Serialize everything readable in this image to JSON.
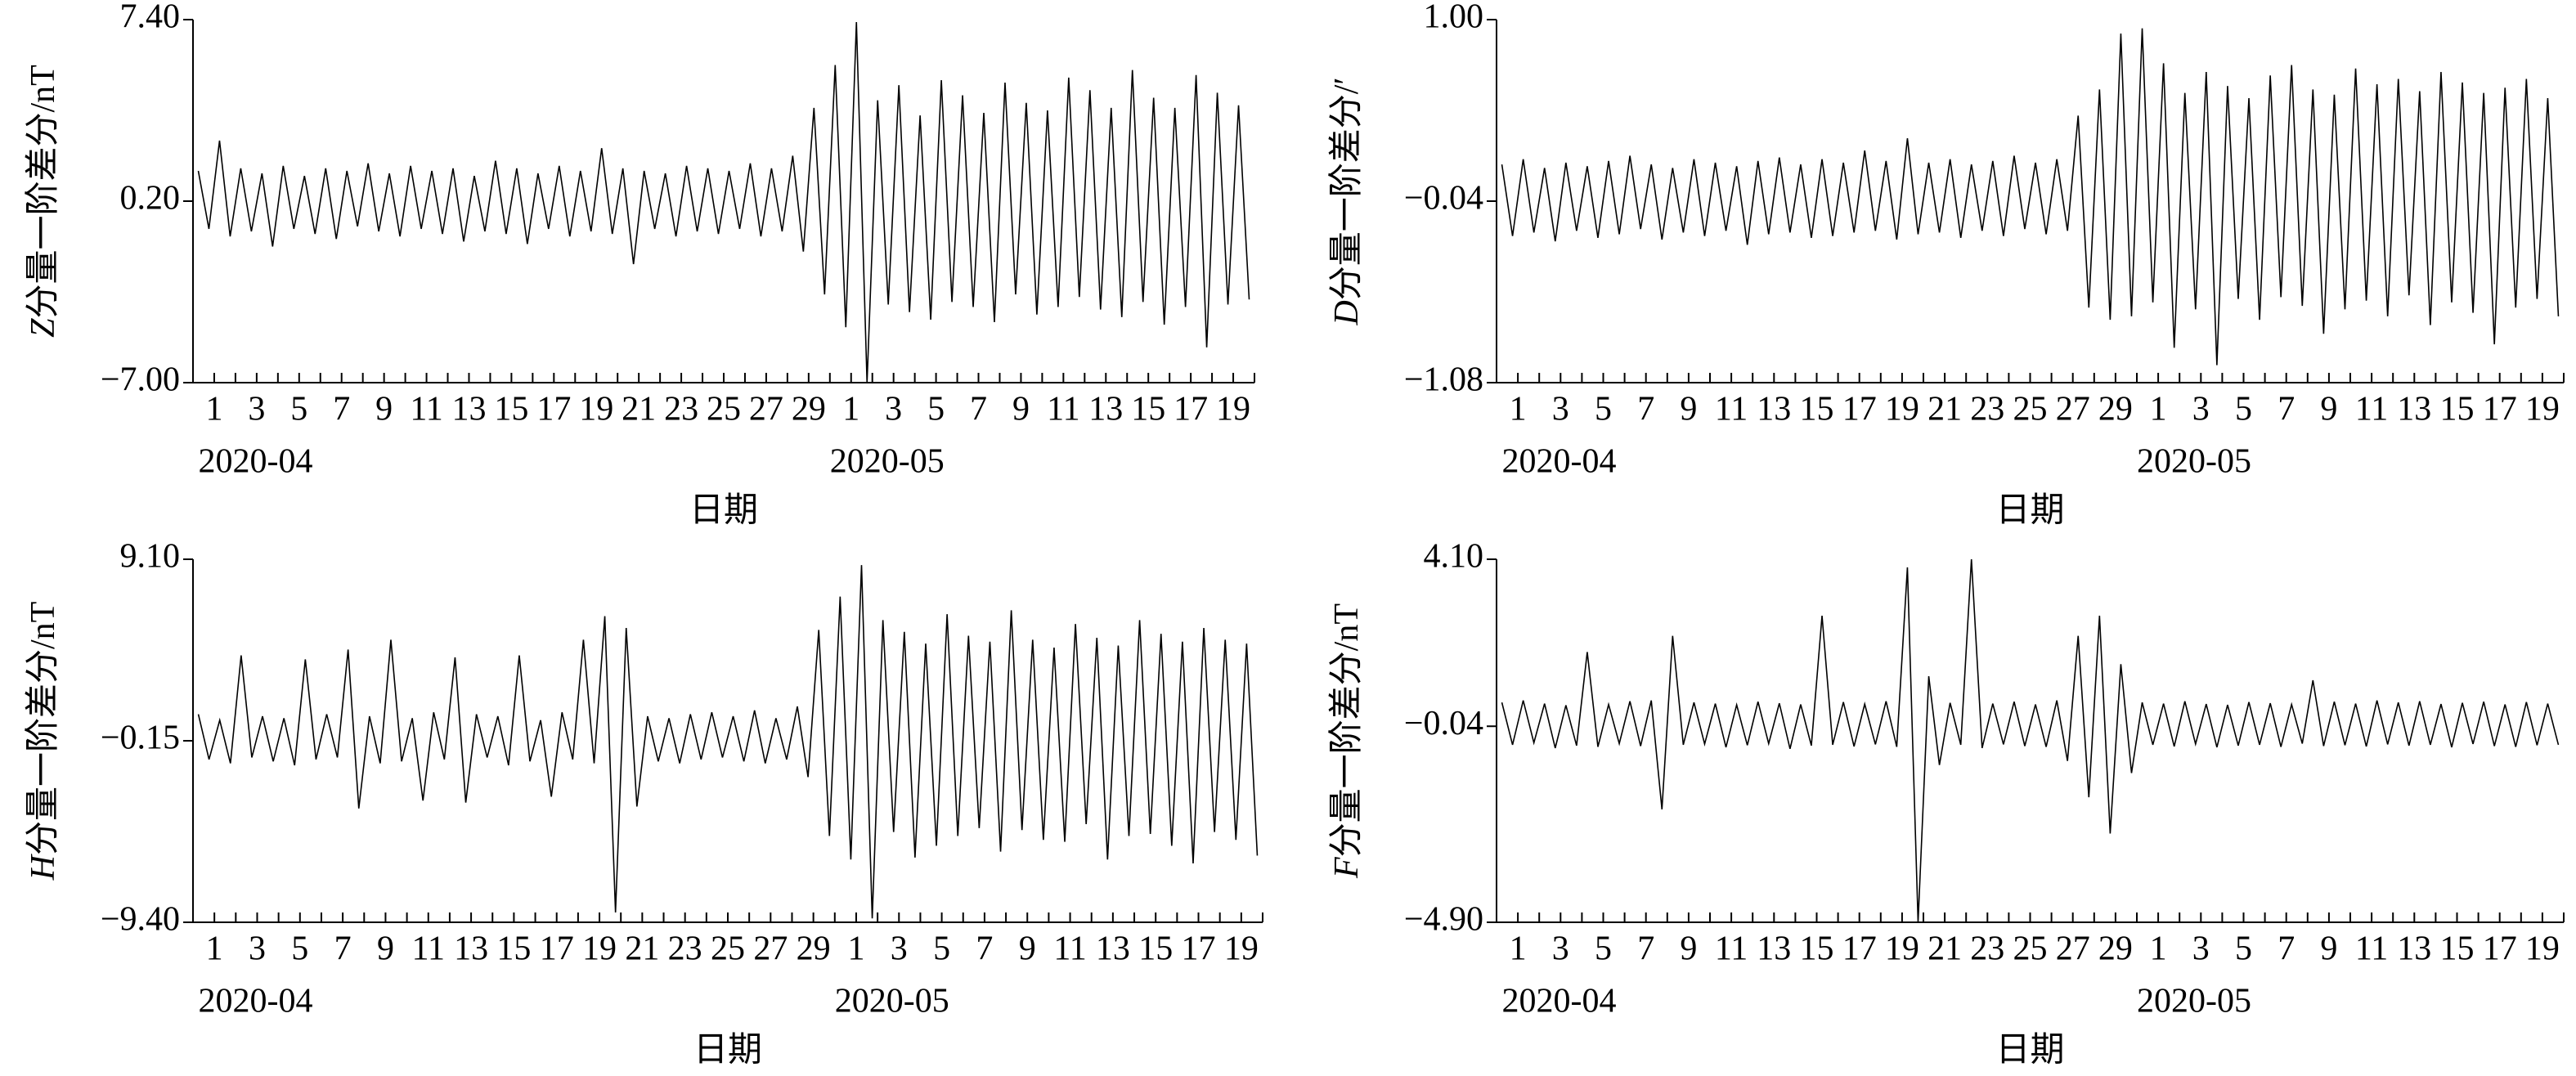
{
  "chart_data": [
    {
      "type": "line",
      "ylabel_var": "Z",
      "ylabel": "分量一阶差分/nT",
      "xlabel": "日期",
      "month_labels": [
        "2020-04",
        "2020-05"
      ],
      "color": "#000000",
      "xlim": [
        0,
        50
      ],
      "ylim": [
        -7.0,
        7.4
      ],
      "yticks": [
        {
          "value": 7.4,
          "label": "7.40"
        },
        {
          "value": 0.2,
          "label": "0.20"
        },
        {
          "value": -7.0,
          "label": "−7.00"
        }
      ],
      "xticks": [
        1,
        3,
        5,
        7,
        9,
        11,
        13,
        15,
        17,
        19,
        21,
        23,
        25,
        27,
        29,
        {
          "value": 31,
          "label": "1"
        },
        {
          "value": 33,
          "label": "3"
        },
        {
          "value": 35,
          "label": "5"
        },
        {
          "value": 37,
          "label": "7"
        },
        {
          "value": 39,
          "label": "9"
        },
        {
          "value": 41,
          "label": "11"
        },
        {
          "value": 43,
          "label": "13"
        },
        {
          "value": 45,
          "label": "15"
        },
        {
          "value": 47,
          "label": "17"
        },
        {
          "value": 49,
          "label": "19"
        }
      ],
      "xminorticks": [
        0,
        2,
        4,
        6,
        8,
        10,
        12,
        14,
        16,
        18,
        20,
        22,
        24,
        26,
        28,
        30,
        32,
        34,
        36,
        38,
        40,
        42,
        44,
        46,
        48,
        50
      ],
      "x": [
        0.25,
        0.75,
        1.25,
        1.75,
        2.25,
        2.75,
        3.25,
        3.75,
        4.25,
        4.75,
        5.25,
        5.75,
        6.25,
        6.75,
        7.25,
        7.75,
        8.25,
        8.75,
        9.25,
        9.75,
        10.25,
        10.75,
        11.25,
        11.75,
        12.25,
        12.75,
        13.25,
        13.75,
        14.25,
        14.75,
        15.25,
        15.75,
        16.25,
        16.75,
        17.25,
        17.75,
        18.25,
        18.75,
        19.25,
        19.75,
        20.25,
        20.75,
        21.25,
        21.75,
        22.25,
        22.75,
        23.25,
        23.75,
        24.25,
        24.75,
        25.25,
        25.75,
        26.25,
        26.75,
        27.25,
        27.75,
        28.25,
        28.75,
        29.25,
        29.75,
        30.25,
        30.75,
        31.25,
        31.75,
        32.25,
        32.75,
        33.25,
        33.75,
        34.25,
        34.75,
        35.25,
        35.75,
        36.25,
        36.75,
        37.25,
        37.75,
        38.25,
        38.75,
        39.25,
        39.75,
        40.25,
        40.75,
        41.25,
        41.75,
        42.25,
        42.75,
        43.25,
        43.75,
        44.25,
        44.75,
        45.25,
        45.75,
        46.25,
        46.75,
        47.25,
        47.75,
        48.25,
        48.75,
        49.25,
        49.75
      ],
      "values": [
        1.4,
        -0.9,
        2.6,
        -1.2,
        1.5,
        -1.0,
        1.3,
        -1.6,
        1.6,
        -0.9,
        1.2,
        -1.1,
        1.5,
        -1.3,
        1.4,
        -0.8,
        1.7,
        -1.0,
        1.3,
        -1.2,
        1.6,
        -0.9,
        1.4,
        -1.1,
        1.5,
        -1.4,
        1.2,
        -1.0,
        1.8,
        -1.1,
        1.5,
        -1.5,
        1.3,
        -0.9,
        1.6,
        -1.2,
        1.4,
        -1.0,
        2.3,
        -1.1,
        1.5,
        -2.3,
        1.4,
        -0.9,
        1.3,
        -1.2,
        1.6,
        -1.0,
        1.5,
        -1.1,
        1.4,
        -0.9,
        1.7,
        -1.2,
        1.5,
        -1.0,
        2.0,
        -1.8,
        3.9,
        -3.5,
        5.6,
        -4.8,
        7.3,
        -7.0,
        4.2,
        -3.9,
        4.8,
        -4.2,
        3.6,
        -4.5,
        5.0,
        -3.8,
        4.4,
        -4.0,
        3.7,
        -4.6,
        4.9,
        -3.5,
        4.1,
        -4.3,
        3.8,
        -4.0,
        5.1,
        -3.6,
        4.6,
        -4.1,
        3.9,
        -4.4,
        5.4,
        -3.8,
        4.3,
        -4.7,
        3.9,
        -4.0,
        5.2,
        -5.6,
        4.5,
        -3.9,
        4.0,
        -3.7
      ]
    },
    {
      "type": "line",
      "ylabel_var": "D",
      "ylabel": "分量一阶差分/′",
      "xlabel": "日期",
      "month_labels": [
        "2020-04",
        "2020-05"
      ],
      "color": "#000000",
      "xlim": [
        0,
        50
      ],
      "ylim": [
        -1.08,
        1.0
      ],
      "yticks": [
        {
          "value": 1.0,
          "label": "1.00"
        },
        {
          "value": -0.04,
          "label": "−0.04"
        },
        {
          "value": -1.08,
          "label": "−1.08"
        }
      ],
      "xticks": [
        1,
        3,
        5,
        7,
        9,
        11,
        13,
        15,
        17,
        19,
        21,
        23,
        25,
        27,
        29,
        {
          "value": 31,
          "label": "1"
        },
        {
          "value": 33,
          "label": "3"
        },
        {
          "value": 35,
          "label": "5"
        },
        {
          "value": 37,
          "label": "7"
        },
        {
          "value": 39,
          "label": "9"
        },
        {
          "value": 41,
          "label": "11"
        },
        {
          "value": 43,
          "label": "13"
        },
        {
          "value": 45,
          "label": "15"
        },
        {
          "value": 47,
          "label": "17"
        },
        {
          "value": 49,
          "label": "19"
        }
      ],
      "xminorticks": [
        0,
        2,
        4,
        6,
        8,
        10,
        12,
        14,
        16,
        18,
        20,
        22,
        24,
        26,
        28,
        30,
        32,
        34,
        36,
        38,
        40,
        42,
        44,
        46,
        48,
        50
      ],
      "x": [
        0.25,
        0.75,
        1.25,
        1.75,
        2.25,
        2.75,
        3.25,
        3.75,
        4.25,
        4.75,
        5.25,
        5.75,
        6.25,
        6.75,
        7.25,
        7.75,
        8.25,
        8.75,
        9.25,
        9.75,
        10.25,
        10.75,
        11.25,
        11.75,
        12.25,
        12.75,
        13.25,
        13.75,
        14.25,
        14.75,
        15.25,
        15.75,
        16.25,
        16.75,
        17.25,
        17.75,
        18.25,
        18.75,
        19.25,
        19.75,
        20.25,
        20.75,
        21.25,
        21.75,
        22.25,
        22.75,
        23.25,
        23.75,
        24.25,
        24.75,
        25.25,
        25.75,
        26.25,
        26.75,
        27.25,
        27.75,
        28.25,
        28.75,
        29.25,
        29.75,
        30.25,
        30.75,
        31.25,
        31.75,
        32.25,
        32.75,
        33.25,
        33.75,
        34.25,
        34.75,
        35.25,
        35.75,
        36.25,
        36.75,
        37.25,
        37.75,
        38.25,
        38.75,
        39.25,
        39.75,
        40.25,
        40.75,
        41.25,
        41.75,
        42.25,
        42.75,
        43.25,
        43.75,
        44.25,
        44.75,
        45.25,
        45.75,
        46.25,
        46.75,
        47.25,
        47.75,
        48.25,
        48.75,
        49.25,
        49.75
      ],
      "values": [
        0.17,
        -0.24,
        0.2,
        -0.22,
        0.15,
        -0.27,
        0.18,
        -0.21,
        0.16,
        -0.25,
        0.19,
        -0.23,
        0.22,
        -0.2,
        0.17,
        -0.26,
        0.15,
        -0.22,
        0.2,
        -0.24,
        0.18,
        -0.21,
        0.16,
        -0.29,
        0.19,
        -0.23,
        0.21,
        -0.22,
        0.17,
        -0.25,
        0.2,
        -0.24,
        0.18,
        -0.22,
        0.25,
        -0.21,
        0.19,
        -0.26,
        0.32,
        -0.23,
        0.18,
        -0.22,
        0.2,
        -0.25,
        0.17,
        -0.21,
        0.19,
        -0.24,
        0.22,
        -0.2,
        0.18,
        -0.23,
        0.2,
        -0.21,
        0.45,
        -0.65,
        0.6,
        -0.72,
        0.92,
        -0.7,
        0.95,
        -0.62,
        0.75,
        -0.88,
        0.58,
        -0.66,
        0.7,
        -0.98,
        0.62,
        -0.6,
        0.55,
        -0.72,
        0.68,
        -0.59,
        0.74,
        -0.64,
        0.6,
        -0.8,
        0.57,
        -0.66,
        0.72,
        -0.61,
        0.63,
        -0.7,
        0.66,
        -0.58,
        0.59,
        -0.75,
        0.7,
        -0.62,
        0.64,
        -0.68,
        0.58,
        -0.86,
        0.61,
        -0.65,
        0.66,
        -0.6,
        0.55,
        -0.7
      ]
    },
    {
      "type": "line",
      "ylabel_var": "H",
      "ylabel": "分量一阶差分/nT",
      "xlabel": "日期",
      "month_labels": [
        "2020-04",
        "2020-05"
      ],
      "color": "#000000",
      "xlim": [
        0,
        50
      ],
      "ylim": [
        -9.4,
        9.1
      ],
      "yticks": [
        {
          "value": 9.1,
          "label": "9.10"
        },
        {
          "value": -0.15,
          "label": "−0.15"
        },
        {
          "value": -9.4,
          "label": "−9.40"
        }
      ],
      "xticks": [
        1,
        3,
        5,
        7,
        9,
        11,
        13,
        15,
        17,
        19,
        21,
        23,
        25,
        27,
        29,
        {
          "value": 31,
          "label": "1"
        },
        {
          "value": 33,
          "label": "3"
        },
        {
          "value": 35,
          "label": "5"
        },
        {
          "value": 37,
          "label": "7"
        },
        {
          "value": 39,
          "label": "9"
        },
        {
          "value": 41,
          "label": "11"
        },
        {
          "value": 43,
          "label": "13"
        },
        {
          "value": 45,
          "label": "15"
        },
        {
          "value": 47,
          "label": "17"
        },
        {
          "value": 49,
          "label": "19"
        }
      ],
      "xminorticks": [
        0,
        2,
        4,
        6,
        8,
        10,
        12,
        14,
        16,
        18,
        20,
        22,
        24,
        26,
        28,
        30,
        32,
        34,
        36,
        38,
        40,
        42,
        44,
        46,
        48,
        50
      ],
      "x": [
        0.25,
        0.75,
        1.25,
        1.75,
        2.25,
        2.75,
        3.25,
        3.75,
        4.25,
        4.75,
        5.25,
        5.75,
        6.25,
        6.75,
        7.25,
        7.75,
        8.25,
        8.75,
        9.25,
        9.75,
        10.25,
        10.75,
        11.25,
        11.75,
        12.25,
        12.75,
        13.25,
        13.75,
        14.25,
        14.75,
        15.25,
        15.75,
        16.25,
        16.75,
        17.25,
        17.75,
        18.25,
        18.75,
        19.25,
        19.75,
        20.25,
        20.75,
        21.25,
        21.75,
        22.25,
        22.75,
        23.25,
        23.75,
        24.25,
        24.75,
        25.25,
        25.75,
        26.25,
        26.75,
        27.25,
        27.75,
        28.25,
        28.75,
        29.25,
        29.75,
        30.25,
        30.75,
        31.25,
        31.75,
        32.25,
        32.75,
        33.25,
        33.75,
        34.25,
        34.75,
        35.25,
        35.75,
        36.25,
        36.75,
        37.25,
        37.75,
        38.25,
        38.75,
        39.25,
        39.75,
        40.25,
        40.75,
        41.25,
        41.75,
        42.25,
        42.75,
        43.25,
        43.75,
        44.25,
        44.75,
        45.25,
        45.75,
        46.25,
        46.75,
        47.25,
        47.75,
        48.25,
        48.75,
        49.25,
        49.75
      ],
      "values": [
        1.2,
        -1.1,
        0.9,
        -1.3,
        4.2,
        -1.0,
        1.1,
        -1.2,
        1.0,
        -1.4,
        4.0,
        -1.1,
        1.2,
        -1.0,
        4.5,
        -3.6,
        1.1,
        -1.3,
        5.0,
        -1.2,
        1.0,
        -3.2,
        1.3,
        -1.1,
        4.1,
        -3.3,
        1.2,
        -1.0,
        1.1,
        -1.4,
        4.2,
        -1.2,
        0.9,
        -3.0,
        1.3,
        -1.1,
        5.0,
        -1.3,
        6.2,
        -8.9,
        5.6,
        -3.5,
        1.1,
        -1.2,
        1.0,
        -1.3,
        1.2,
        -1.1,
        1.3,
        -1.0,
        1.1,
        -1.2,
        1.4,
        -1.3,
        1.0,
        -1.1,
        1.6,
        -2.0,
        5.5,
        -5.0,
        7.2,
        -6.2,
        8.8,
        -9.2,
        6.0,
        -4.8,
        5.4,
        -6.1,
        4.8,
        -5.5,
        6.3,
        -5.0,
        5.2,
        -4.6,
        4.9,
        -5.8,
        6.5,
        -4.7,
        5.0,
        -5.2,
        4.6,
        -5.3,
        5.8,
        -4.4,
        5.1,
        -6.2,
        4.7,
        -5.0,
        6.0,
        -4.9,
        5.3,
        -5.5,
        4.9,
        -6.4,
        5.6,
        -4.8,
        5.0,
        -5.2,
        4.8,
        -6.0
      ]
    },
    {
      "type": "line",
      "ylabel_var": "F",
      "ylabel": "分量一阶差分/nT",
      "xlabel": "日期",
      "month_labels": [
        "2020-04",
        "2020-05"
      ],
      "color": "#000000",
      "xlim": [
        0,
        50
      ],
      "ylim": [
        -4.9,
        4.1
      ],
      "yticks": [
        {
          "value": 4.1,
          "label": "4.10"
        },
        {
          "value": -0.04,
          "label": "−0.04"
        },
        {
          "value": -4.9,
          "label": "−4.90"
        }
      ],
      "xticks": [
        1,
        3,
        5,
        7,
        9,
        11,
        13,
        15,
        17,
        19,
        21,
        23,
        25,
        27,
        29,
        {
          "value": 31,
          "label": "1"
        },
        {
          "value": 33,
          "label": "3"
        },
        {
          "value": 35,
          "label": "5"
        },
        {
          "value": 37,
          "label": "7"
        },
        {
          "value": 39,
          "label": "9"
        },
        {
          "value": 41,
          "label": "11"
        },
        {
          "value": 43,
          "label": "13"
        },
        {
          "value": 45,
          "label": "15"
        },
        {
          "value": 47,
          "label": "17"
        },
        {
          "value": 49,
          "label": "19"
        }
      ],
      "xminorticks": [
        0,
        2,
        4,
        6,
        8,
        10,
        12,
        14,
        16,
        18,
        20,
        22,
        24,
        26,
        28,
        30,
        32,
        34,
        36,
        38,
        40,
        42,
        44,
        46,
        48,
        50
      ],
      "x": [
        0.25,
        0.75,
        1.25,
        1.75,
        2.25,
        2.75,
        3.25,
        3.75,
        4.25,
        4.75,
        5.25,
        5.75,
        6.25,
        6.75,
        7.25,
        7.75,
        8.25,
        8.75,
        9.25,
        9.75,
        10.25,
        10.75,
        11.25,
        11.75,
        12.25,
        12.75,
        13.25,
        13.75,
        14.25,
        14.75,
        15.25,
        15.75,
        16.25,
        16.75,
        17.25,
        17.75,
        18.25,
        18.75,
        19.25,
        19.75,
        20.25,
        20.75,
        21.25,
        21.75,
        22.25,
        22.75,
        23.25,
        23.75,
        24.25,
        24.75,
        25.25,
        25.75,
        26.25,
        26.75,
        27.25,
        27.75,
        28.25,
        28.75,
        29.25,
        29.75,
        30.25,
        30.75,
        31.25,
        31.75,
        32.25,
        32.75,
        33.25,
        33.75,
        34.25,
        34.75,
        35.25,
        35.75,
        36.25,
        36.75,
        37.25,
        37.75,
        38.25,
        38.75,
        39.25,
        39.75,
        40.25,
        40.75,
        41.25,
        41.75,
        42.25,
        42.75,
        43.25,
        43.75,
        44.25,
        44.75,
        45.25,
        45.75,
        46.25,
        46.75,
        47.25,
        47.75,
        48.25,
        48.75,
        49.25,
        49.75
      ],
      "values": [
        0.55,
        -0.5,
        0.6,
        -0.45,
        0.52,
        -0.58,
        0.48,
        -0.52,
        1.8,
        -0.55,
        0.5,
        -0.47,
        0.58,
        -0.53,
        0.6,
        -2.1,
        2.2,
        -0.5,
        0.55,
        -0.48,
        0.52,
        -0.56,
        0.49,
        -0.51,
        0.57,
        -0.47,
        0.53,
        -0.6,
        0.5,
        -0.52,
        2.7,
        -0.5,
        0.56,
        -0.54,
        0.51,
        -0.49,
        0.58,
        -0.55,
        3.9,
        -4.9,
        1.2,
        -1.0,
        0.54,
        -0.5,
        4.1,
        -0.58,
        0.52,
        -0.49,
        0.57,
        -0.53,
        0.5,
        -0.55,
        0.6,
        -0.9,
        2.2,
        -1.8,
        2.7,
        -2.7,
        1.5,
        -1.2,
        0.55,
        -0.5,
        0.52,
        -0.54,
        0.58,
        -0.48,
        0.51,
        -0.56,
        0.49,
        -0.52,
        0.56,
        -0.5,
        0.53,
        -0.55,
        0.5,
        -0.47,
        1.1,
        -0.53,
        0.57,
        -0.51,
        0.52,
        -0.54,
        0.6,
        -0.49,
        0.55,
        -0.52,
        0.58,
        -0.5,
        0.51,
        -0.56,
        0.54,
        -0.48,
        0.57,
        -0.53,
        0.5,
        -0.55,
        0.56,
        -0.51,
        0.52,
        -0.5
      ]
    }
  ]
}
